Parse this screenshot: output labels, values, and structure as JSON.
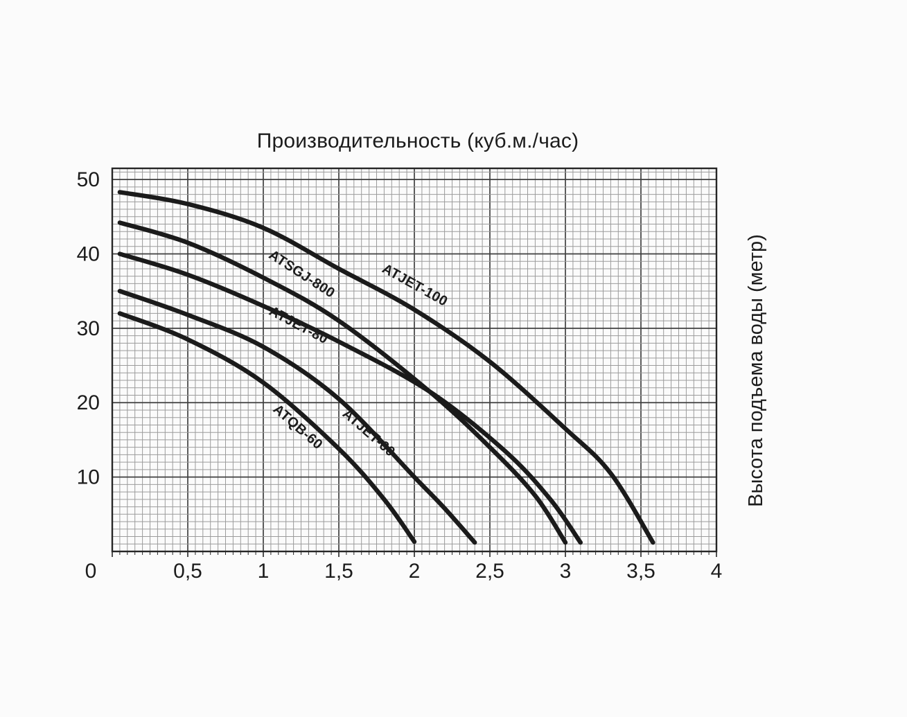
{
  "page": {
    "background": "#fbfbfb"
  },
  "chart_data": {
    "type": "line",
    "title": "Производительность (куб.м./час)",
    "ylabel_right": "Высота подъема воды (метр)",
    "xlabel": "",
    "xlim": [
      0,
      4
    ],
    "ylim": [
      0,
      51.5
    ],
    "x_minor_step": 0.05,
    "x_major_step": 0.5,
    "y_minor_step": 1,
    "y_major_step": 10,
    "grid": "on",
    "legend_position": "inline-curve-labels",
    "origin_label": "0",
    "x_ticks": [
      {
        "v": 0.5,
        "label": "0,5"
      },
      {
        "v": 1,
        "label": "1"
      },
      {
        "v": 1.5,
        "label": "1,5"
      },
      {
        "v": 2,
        "label": "2"
      },
      {
        "v": 2.5,
        "label": "2,5"
      },
      {
        "v": 3,
        "label": "3"
      },
      {
        "v": 3.5,
        "label": "3,5"
      },
      {
        "v": 4,
        "label": "4"
      }
    ],
    "y_ticks": [
      {
        "v": 10,
        "label": "10"
      },
      {
        "v": 20,
        "label": "20"
      },
      {
        "v": 30,
        "label": "30"
      },
      {
        "v": 40,
        "label": "40"
      },
      {
        "v": 50,
        "label": "50"
      }
    ],
    "colors": {
      "curve": "#1b1b1b",
      "grid_minor": "#9b9b9b",
      "grid_major": "#3f3f3f",
      "border": "#262626",
      "text": "#1c1c1c"
    },
    "series": [
      {
        "name": "ATJET-100",
        "points": [
          [
            0.05,
            48.3
          ],
          [
            0.5,
            46.7
          ],
          [
            1.0,
            43.5
          ],
          [
            1.5,
            38.0
          ],
          [
            2.0,
            32.5
          ],
          [
            2.5,
            25.5
          ],
          [
            3.0,
            16.5
          ],
          [
            3.3,
            10.5
          ],
          [
            3.58,
            1.2
          ]
        ],
        "label": {
          "text": "ATJET-100",
          "x": 1.99,
          "y": 35.3,
          "angle": 29
        }
      },
      {
        "name": "ATSGJ-800",
        "points": [
          [
            0.05,
            44.2
          ],
          [
            0.5,
            41.5
          ],
          [
            1.0,
            36.8
          ],
          [
            1.5,
            31.0
          ],
          [
            2.1,
            21.5
          ],
          [
            2.5,
            14.0
          ],
          [
            2.8,
            7.5
          ],
          [
            3.0,
            1.2
          ]
        ],
        "label": {
          "text": "ATSGJ-800",
          "x": 1.24,
          "y": 36.8,
          "angle": 33
        }
      },
      {
        "name": "ATJET-80",
        "points": [
          [
            0.05,
            40.0
          ],
          [
            0.5,
            37.2
          ],
          [
            1.0,
            33.0
          ],
          [
            1.5,
            28.2
          ],
          [
            2.1,
            21.5
          ],
          [
            2.6,
            13.5
          ],
          [
            2.9,
            7.0
          ],
          [
            3.1,
            1.2
          ]
        ],
        "label": {
          "text": "ATJET-80",
          "x": 1.22,
          "y": 29.9,
          "angle": 28
        }
      },
      {
        "name": "ATJET-60",
        "points": [
          [
            0.05,
            35.0
          ],
          [
            0.5,
            31.8
          ],
          [
            1.0,
            27.5
          ],
          [
            1.5,
            20.5
          ],
          [
            2.0,
            10.0
          ],
          [
            2.2,
            5.8
          ],
          [
            2.4,
            1.2
          ]
        ],
        "label": {
          "text": "ATJET-60",
          "x": 1.68,
          "y": 15.5,
          "angle": 41
        }
      },
      {
        "name": "ATQB-60",
        "points": [
          [
            0.05,
            32.0
          ],
          [
            0.5,
            28.5
          ],
          [
            1.0,
            22.7
          ],
          [
            1.5,
            13.8
          ],
          [
            1.8,
            7.0
          ],
          [
            2.0,
            1.3
          ]
        ],
        "label": {
          "text": "ATQB-60",
          "x": 1.21,
          "y": 16.3,
          "angle": 41
        }
      }
    ]
  }
}
